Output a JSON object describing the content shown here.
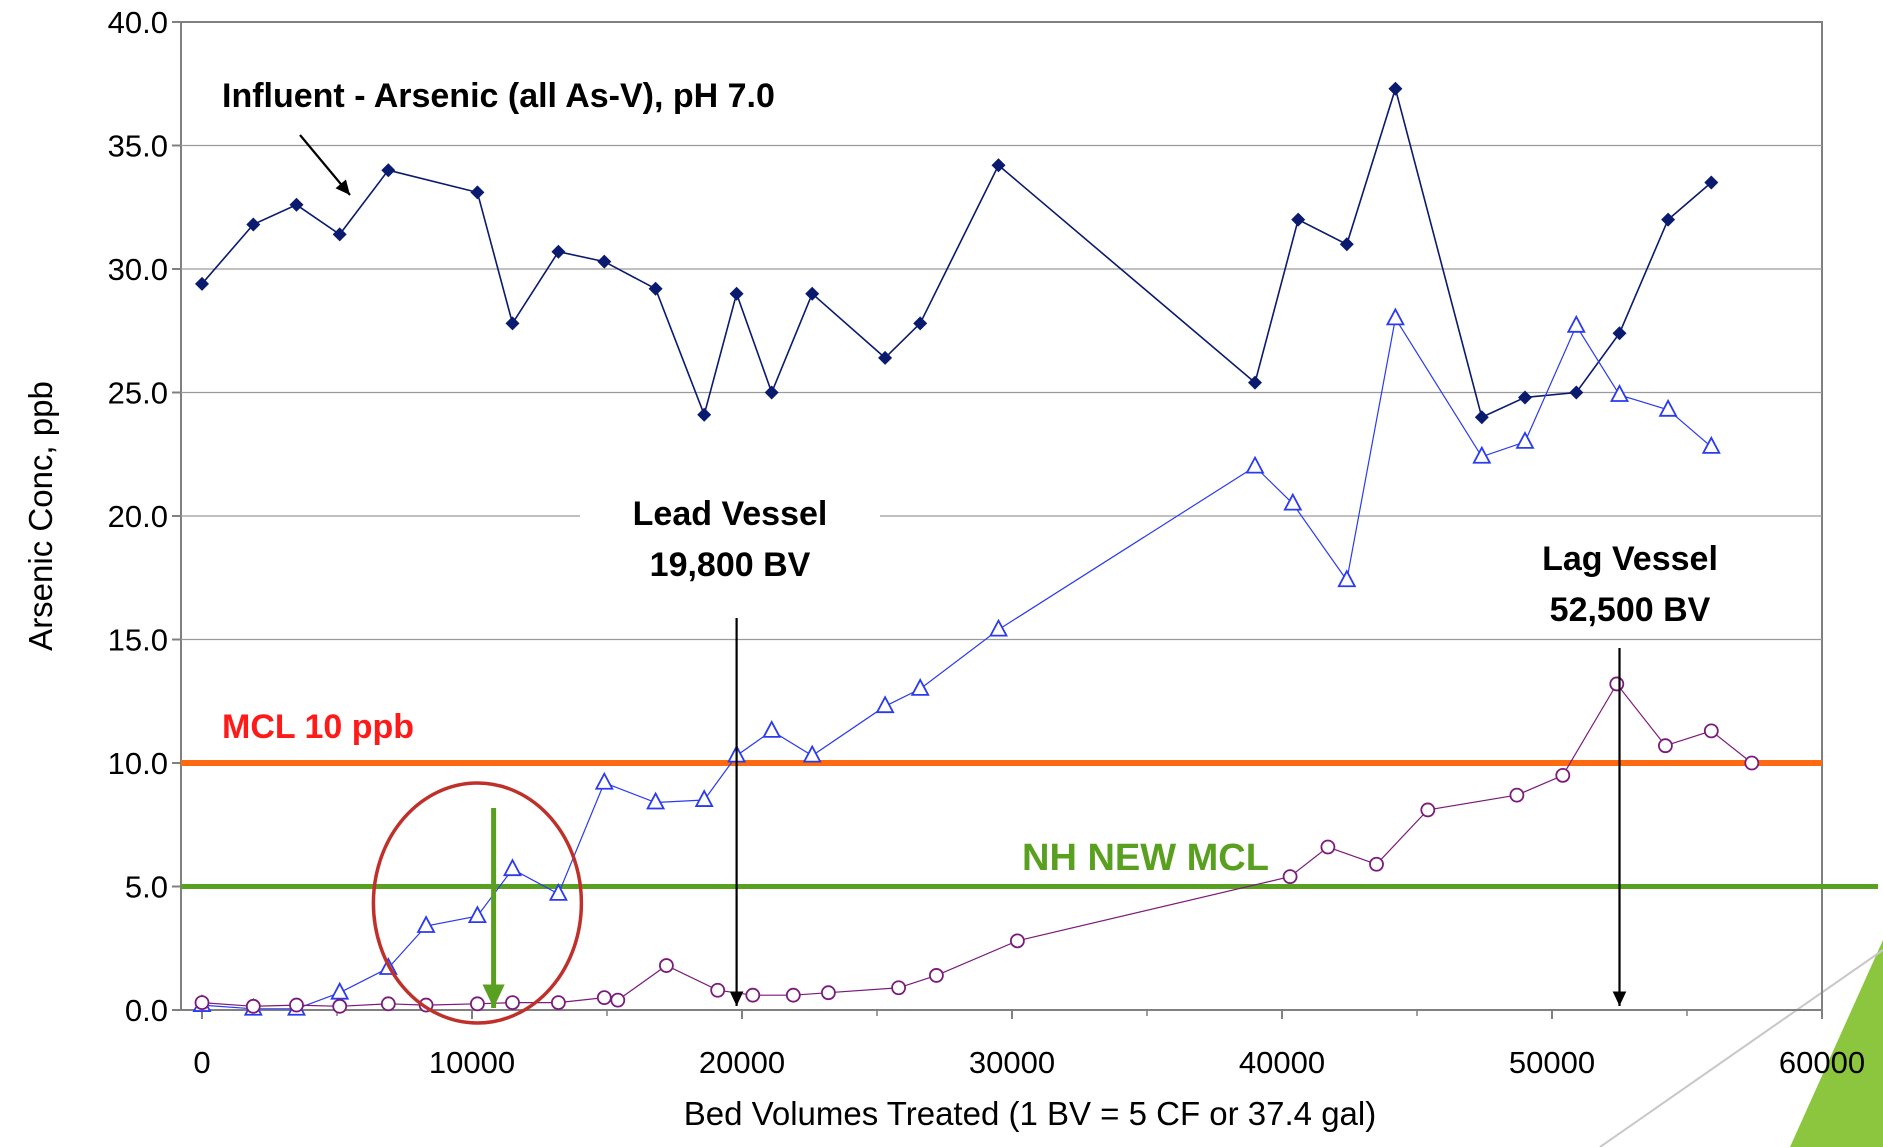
{
  "chart_data": {
    "type": "line",
    "xlabel": "Bed Volumes Treated (1 BV = 5 CF or 37.4 gal)",
    "ylabel": "Arsenic Conc, ppb",
    "xlim": [
      0,
      60000
    ],
    "ylim": [
      0,
      40
    ],
    "x_ticks": [
      "0",
      "10000",
      "20000",
      "30000",
      "40000",
      "50000",
      "60000"
    ],
    "y_ticks": [
      "0.0",
      "5.0",
      "10.0",
      "15.0",
      "20.0",
      "25.0",
      "30.0",
      "35.0",
      "40.0"
    ],
    "grid": "horizontal",
    "colors": {
      "influent": "#0a1a6e",
      "lead": "#2a3af0",
      "lag": "#7a1a7a",
      "mcl": "#ff6a10",
      "nh": "#5aa020",
      "circle": "#c0302a"
    },
    "series": [
      {
        "key": "influent",
        "marker": "diamond",
        "x": [
          0,
          1900,
          3500,
          5100,
          6900,
          10200,
          11500,
          13200,
          14900,
          16800,
          18600,
          19800,
          21100,
          22600,
          25300,
          26600,
          29500,
          39000,
          40600,
          42400,
          44200,
          47400,
          49000,
          50900,
          52500,
          54300,
          55900
        ],
        "y": [
          29.4,
          31.8,
          32.6,
          31.4,
          34.0,
          33.1,
          27.8,
          30.7,
          30.3,
          29.2,
          24.1,
          29.0,
          25.0,
          29.0,
          26.4,
          27.8,
          34.2,
          25.4,
          32.0,
          31.0,
          37.3,
          24.0,
          24.8,
          25.0,
          27.4,
          32.0,
          33.5
        ]
      },
      {
        "key": "lead",
        "marker": "triangle",
        "x": [
          0,
          1900,
          3500,
          5100,
          6900,
          8300,
          10200,
          11500,
          13200,
          14900,
          16800,
          18600,
          19800,
          21100,
          22600,
          25300,
          26600,
          29500,
          39000,
          40400,
          42400,
          44200,
          47400,
          49000,
          50900,
          52500,
          54300,
          55900
        ],
        "y": [
          0.2,
          0.05,
          0.05,
          0.7,
          1.7,
          3.4,
          3.8,
          5.7,
          4.7,
          9.2,
          8.4,
          8.5,
          10.3,
          11.3,
          10.3,
          12.3,
          13.0,
          15.4,
          22.0,
          20.5,
          17.4,
          28.0,
          22.4,
          23.0,
          27.7,
          24.9,
          24.3,
          22.8
        ]
      },
      {
        "key": "lag",
        "marker": "circle",
        "x": [
          0,
          1900,
          3500,
          5100,
          6900,
          8300,
          10200,
          11500,
          13200,
          14900,
          15400,
          17200,
          19100,
          20400,
          21900,
          23200,
          25800,
          27200,
          30200,
          40300,
          41700,
          43500,
          45400,
          48700,
          50400,
          52400,
          54200,
          55900,
          57400
        ],
        "y": [
          0.3,
          0.15,
          0.2,
          0.15,
          0.25,
          0.2,
          0.25,
          0.3,
          0.3,
          0.5,
          0.4,
          1.8,
          0.8,
          0.6,
          0.6,
          0.7,
          0.9,
          1.4,
          2.8,
          5.4,
          6.6,
          5.9,
          8.1,
          8.7,
          9.5,
          13.2,
          10.7,
          11.3,
          10.0
        ]
      }
    ],
    "reference_lines": [
      {
        "key": "mcl",
        "y": 10,
        "label": "MCL 10 ppb"
      },
      {
        "key": "nh",
        "y": 5,
        "label": "NH NEW MCL"
      }
    ],
    "annotations": {
      "influent": "Influent - Arsenic (all As-V), pH 7.0",
      "lead_line1": "Lead Vessel",
      "lead_line2": "19,800 BV",
      "lead_x": 19800,
      "lag_line1": "Lag Vessel",
      "lag_line2": "52,500 BV",
      "lag_x": 52500,
      "circle_center_x": 10200,
      "green_arrow_x": 10800
    }
  }
}
